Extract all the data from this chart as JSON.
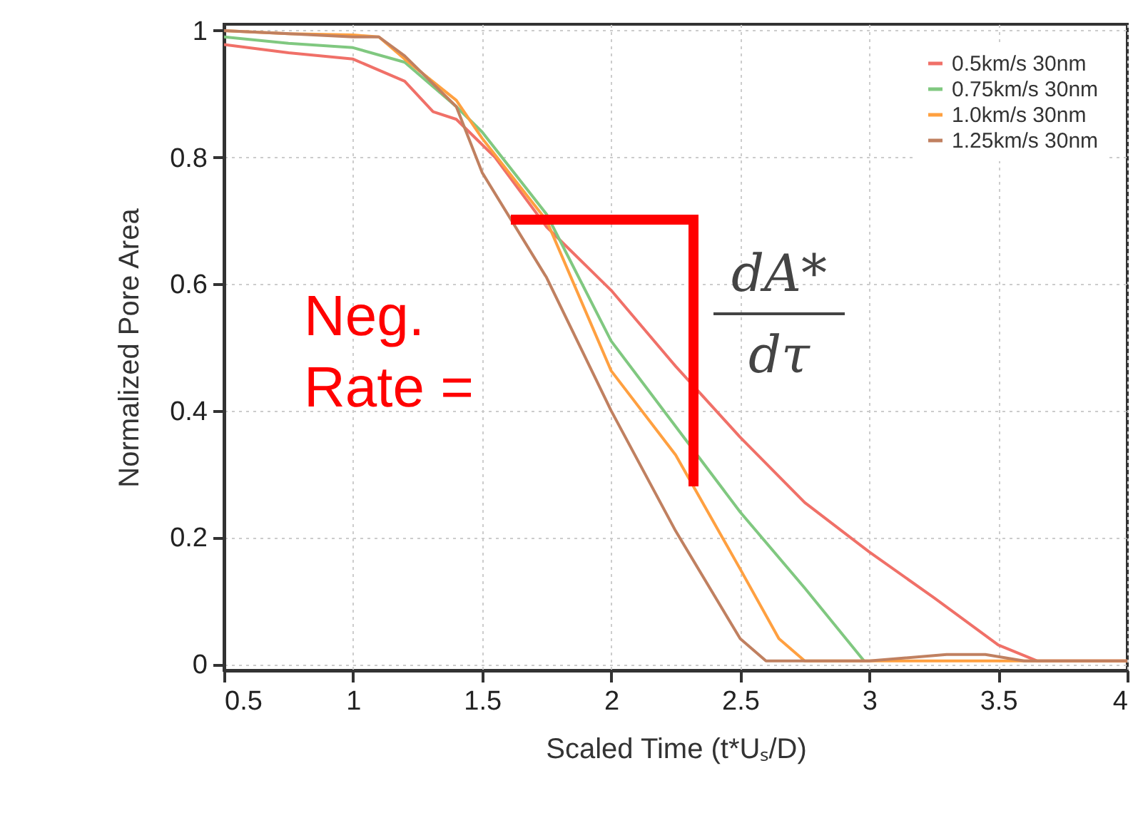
{
  "chart_data": {
    "type": "line",
    "xlabel": "Scaled Time (t*Uₛ/D)",
    "ylabel": "Normalized Pore Area",
    "xlim": [
      0.5,
      4
    ],
    "ylim": [
      -0.01,
      1.01
    ],
    "xticks": [
      0.5,
      1,
      1.5,
      2,
      2.5,
      3,
      3.5,
      4
    ],
    "yticks": [
      0,
      0.2,
      0.4,
      0.6,
      0.8,
      1
    ],
    "grid": true,
    "legend": "top right",
    "line_style": "solid",
    "marker": "none",
    "annotations": [
      "Neg. Rate =",
      "dA*",
      "dτ"
    ],
    "series": [
      {
        "name": "0.5km/s 30nm",
        "color": "#f07068",
        "x": [
          0.5,
          0.75,
          1,
          1.2,
          1.31,
          1.4,
          1.55,
          1.75,
          2,
          2.25,
          2.5,
          2.75,
          3,
          3.25,
          3.5,
          3.65,
          3.8,
          4
        ],
        "values": [
          0.978,
          0.965,
          0.955,
          0.92,
          0.872,
          0.86,
          0.8,
          0.69,
          0.59,
          0.47,
          0.358,
          0.255,
          0.177,
          0.105,
          0.03,
          0.005,
          0.005,
          0.005
        ]
      },
      {
        "name": "0.75km/s 30nm",
        "color": "#80c880",
        "x": [
          0.5,
          0.75,
          1,
          1.2,
          1.4,
          1.5,
          1.75,
          2,
          2.25,
          2.5,
          2.75,
          2.98
        ],
        "values": [
          0.99,
          0.98,
          0.973,
          0.95,
          0.88,
          0.84,
          0.71,
          0.51,
          0.375,
          0.24,
          0.12,
          0.005
        ]
      },
      {
        "name": "1.0km/s 30nm",
        "color": "#ffa040",
        "x": [
          0.5,
          0.75,
          1,
          1.1,
          1.2,
          1.4,
          1.5,
          1.75,
          2,
          2.25,
          2.5,
          2.65,
          2.75,
          3,
          3.5,
          4
        ],
        "values": [
          1.0,
          0.995,
          0.993,
          0.99,
          0.955,
          0.89,
          0.83,
          0.7,
          0.463,
          0.33,
          0.15,
          0.04,
          0.005,
          0.005,
          0.005,
          0.005
        ]
      },
      {
        "name": "1.25km/s 30nm",
        "color": "#c08060",
        "x": [
          0.5,
          0.75,
          1,
          1.1,
          1.2,
          1.4,
          1.5,
          1.75,
          2,
          2.25,
          2.5,
          2.6,
          2.75,
          3,
          3.3,
          3.45,
          3.6,
          4
        ],
        "values": [
          1.0,
          0.995,
          0.99,
          0.99,
          0.96,
          0.88,
          0.776,
          0.61,
          0.4,
          0.21,
          0.04,
          0.005,
          0.005,
          0.005,
          0.015,
          0.015,
          0.005,
          0.005
        ]
      }
    ]
  }
}
